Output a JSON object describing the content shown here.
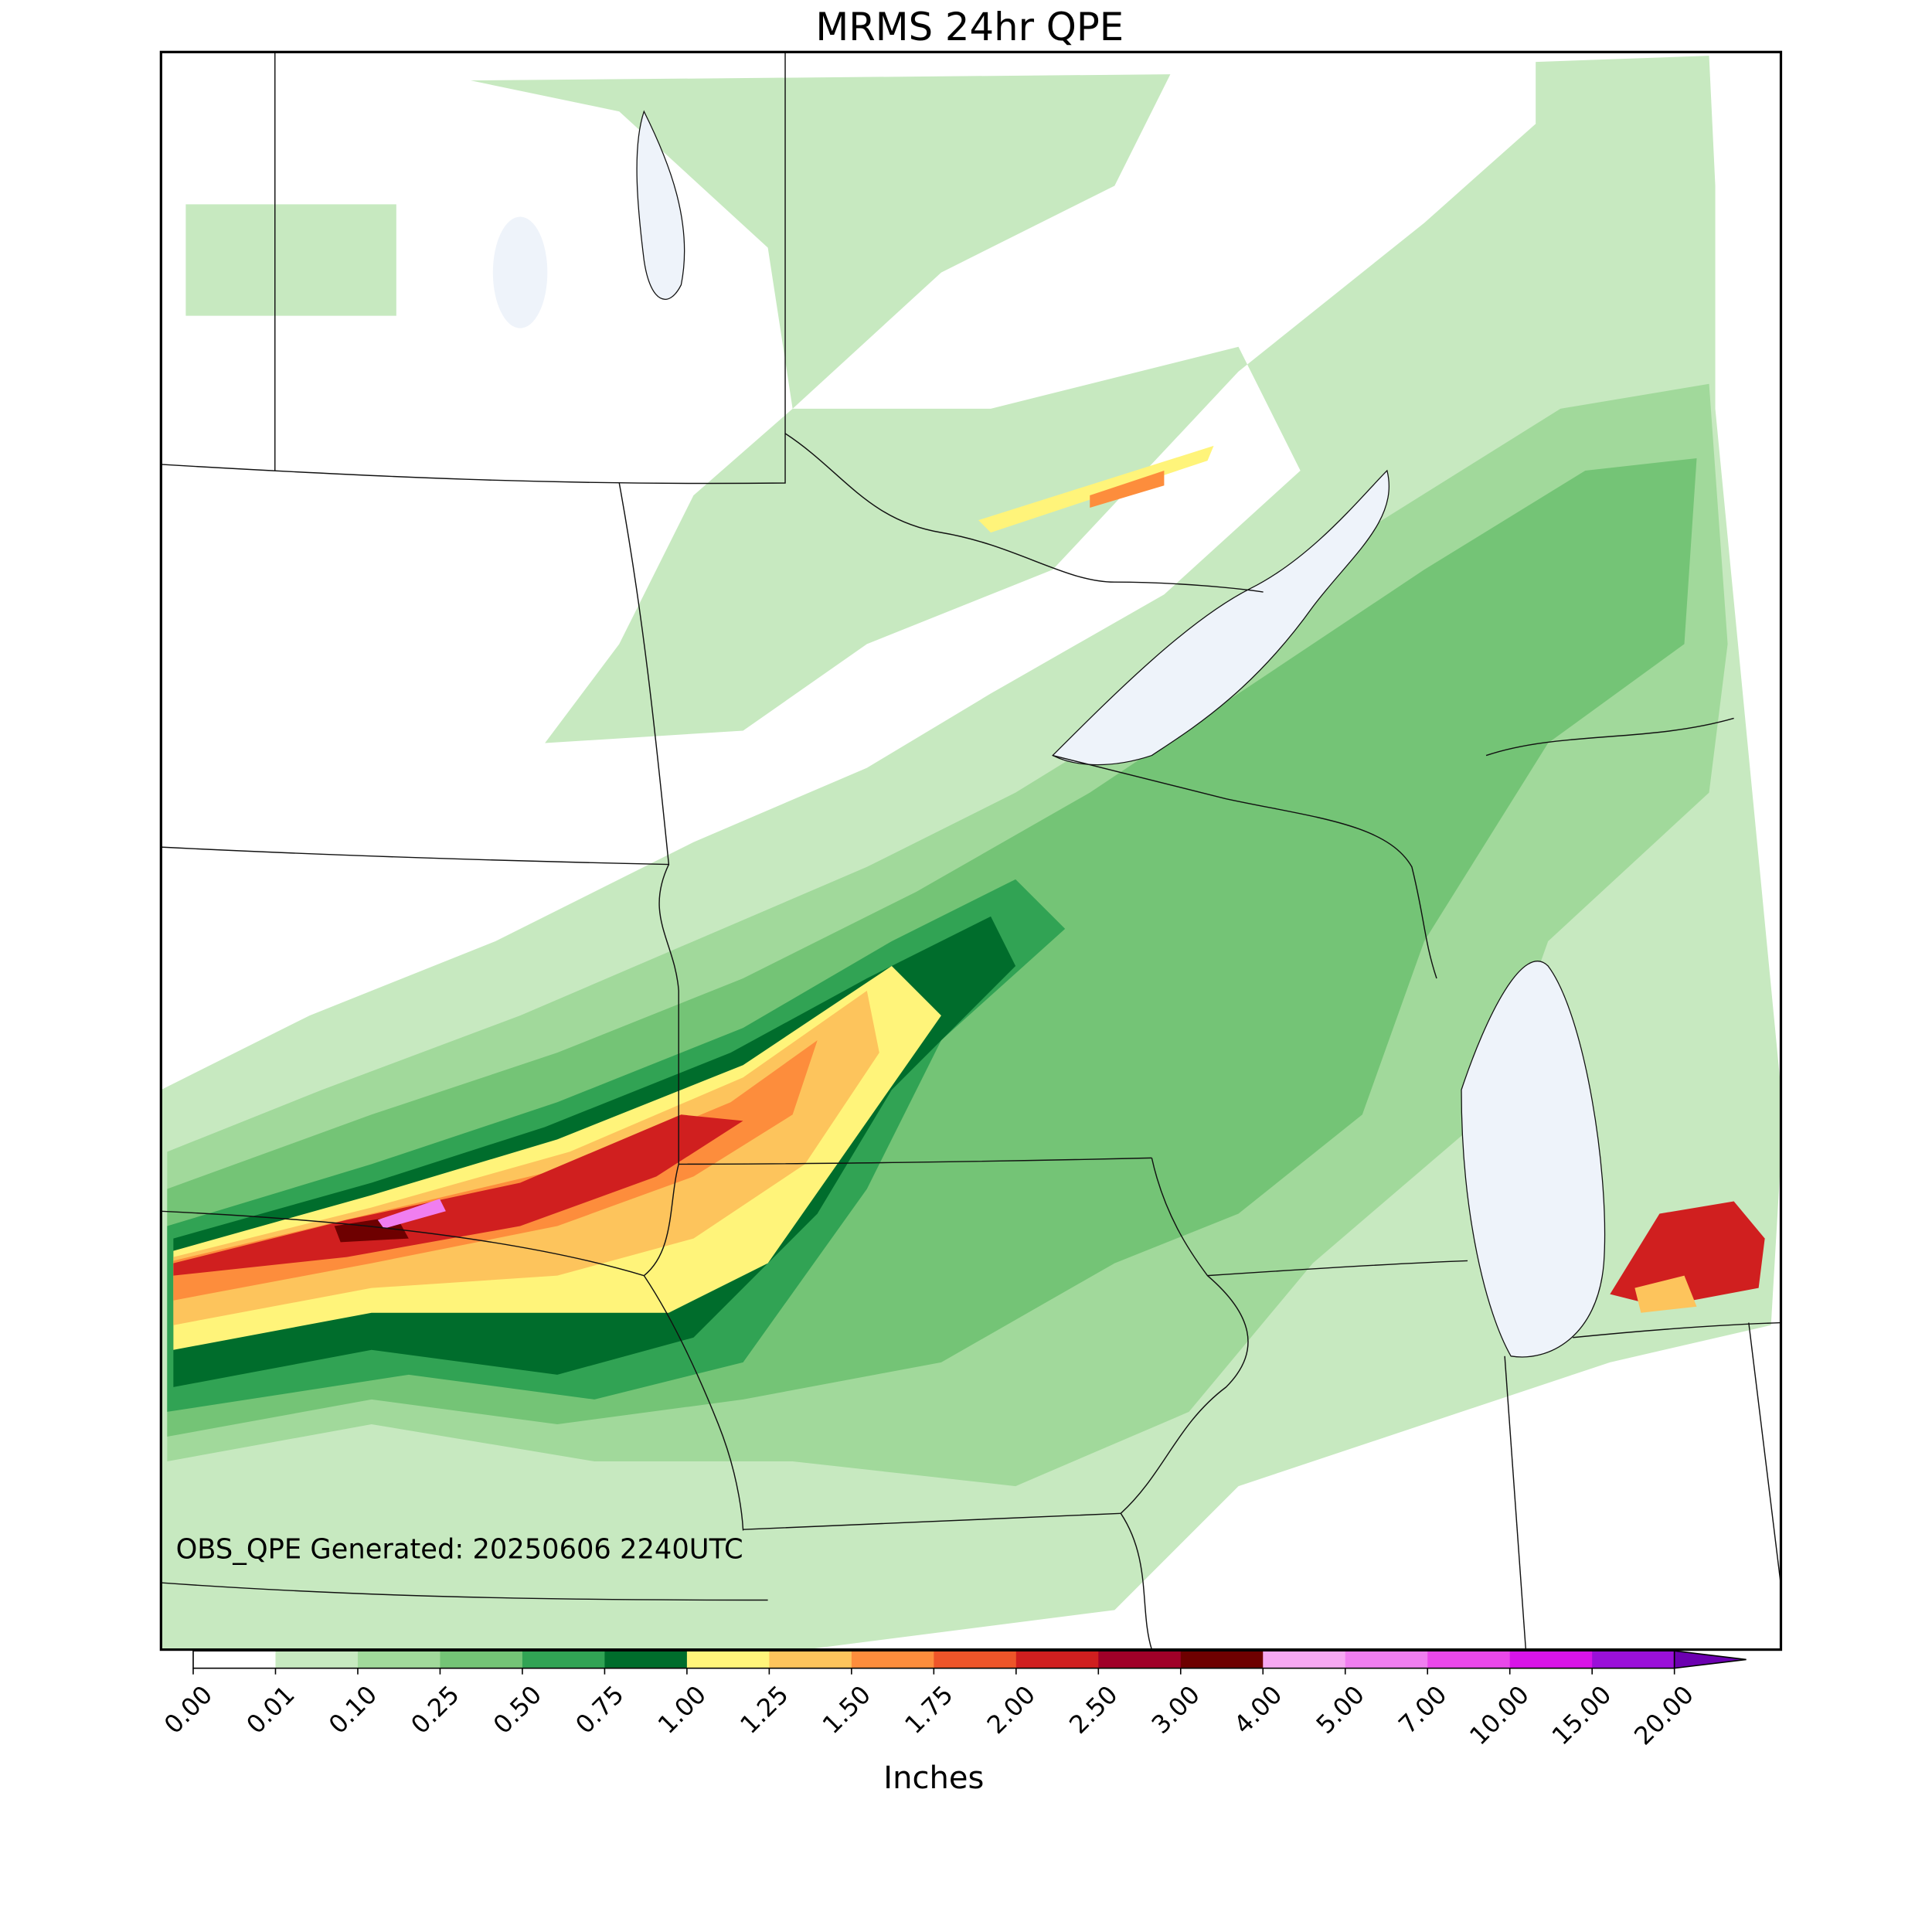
{
  "title": "MRMS 24hr QPE",
  "annotation": "OBS_QPE Generated: 20250606 2240UTC",
  "colorbar": {
    "label": "Inches",
    "ticks": [
      {
        "value": 0,
        "label": "0.00"
      },
      {
        "value": 0.01,
        "label": "0.01"
      },
      {
        "value": 0.1,
        "label": "0.10"
      },
      {
        "value": 0.25,
        "label": "0.25"
      },
      {
        "value": 0.5,
        "label": "0.50"
      },
      {
        "value": 0.75,
        "label": "0.75"
      },
      {
        "value": 1,
        "label": "1.00"
      },
      {
        "value": 1.25,
        "label": "1.25"
      },
      {
        "value": 1.5,
        "label": "1.50"
      },
      {
        "value": 1.75,
        "label": "1.75"
      },
      {
        "value": 2,
        "label": "2.00"
      },
      {
        "value": 2.5,
        "label": "2.50"
      },
      {
        "value": 3,
        "label": "3.00"
      },
      {
        "value": 4,
        "label": "4.00"
      },
      {
        "value": 5,
        "label": "5.00"
      },
      {
        "value": 7,
        "label": "7.00"
      },
      {
        "value": 10,
        "label": "10.00"
      },
      {
        "value": 15,
        "label": "15.00"
      },
      {
        "value": 20,
        "label": "20.00"
      }
    ],
    "colors": [
      "#ffffff",
      "#c7e9c0",
      "#a1d99b",
      "#74c476",
      "#31a354",
      "#006d2c",
      "#fff47a",
      "#fdc45c",
      "#fd8d3c",
      "#ee5529",
      "#d01f1f",
      "#a00028",
      "#6e0000",
      "#f6a8f2",
      "#f07ef0",
      "#ea48ea",
      "#d814e8",
      "#9a10d8"
    ],
    "extend_color": "#6c00b0"
  }
}
